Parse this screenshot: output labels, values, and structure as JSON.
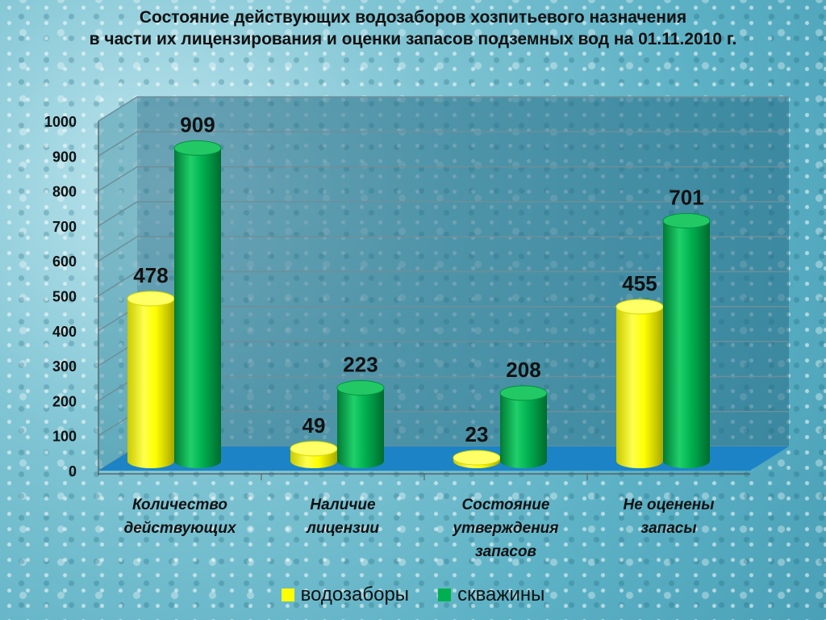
{
  "title": {
    "line1": "Состояние действующих водозаборов хозпитьевого назначения",
    "line2": "в части их лицензирования и оценки запасов подземных вод на 01.11.2010 г."
  },
  "chart_data": {
    "type": "bar",
    "title": "Состояние действующих водозаборов хозпитьевого назначения в части их лицензирования и оценки запасов подземных вод на 01.11.2010 г.",
    "categories": [
      [
        "Количество",
        "действующих"
      ],
      [
        "Наличие",
        "лицензии"
      ],
      [
        "Состояние",
        "утверждения",
        "запасов"
      ],
      [
        "Не оценены",
        "запасы"
      ]
    ],
    "series": [
      {
        "name": "водозаборы",
        "values": [
          478,
          49,
          23,
          455
        ],
        "color": "#ffff00"
      },
      {
        "name": "скважины",
        "values": [
          909,
          223,
          208,
          701
        ],
        "color": "#00b050"
      }
    ],
    "ylim": [
      0,
      1000
    ],
    "yticks": [
      0,
      100,
      200,
      300,
      400,
      500,
      600,
      700,
      800,
      900,
      1000
    ],
    "grid": true,
    "legend_position": "bottom",
    "style": "3d-cylinder"
  }
}
